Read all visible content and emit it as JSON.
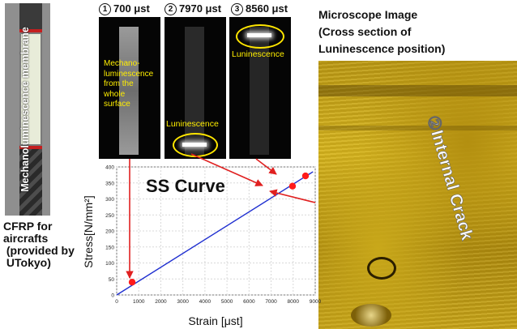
{
  "specimen": {
    "vertical_label": "Mechanoluminescence membrane",
    "caption_lines": [
      "CFRP for",
      "aircrafts",
      " (provided by",
      " UTokyo)"
    ]
  },
  "panels": [
    {
      "number": "1",
      "strain_label": "700 μst",
      "annotation_lines": [
        "Mechano-",
        "luminescence",
        "from the",
        "whole",
        "surface"
      ]
    },
    {
      "number": "2",
      "strain_label": "7970 μst",
      "annotation": "Luninescence"
    },
    {
      "number": "3",
      "strain_label": "8560 μst",
      "annotation": "Luninescence"
    }
  ],
  "microscope": {
    "title_lines": [
      "Microscope Image",
      "(Cross section of",
      "Luninescence position)"
    ],
    "crack_label": "②Internal Crack"
  },
  "chart_data": {
    "type": "line",
    "title": "SS Curve",
    "xlabel": "Strain [μst]",
    "ylabel": "Stress[N/mm²]",
    "xlim": [
      0,
      9000
    ],
    "ylim": [
      0,
      400
    ],
    "x_ticks": [
      0,
      1000,
      2000,
      3000,
      4000,
      5000,
      6000,
      7000,
      8000,
      9000
    ],
    "y_ticks": [
      0,
      50,
      100,
      150,
      200,
      250,
      300,
      350,
      400
    ],
    "grid": true,
    "series": [
      {
        "x": [
          0,
          8900
        ],
        "y": [
          0,
          385
        ],
        "color": "#1f2fd0"
      }
    ],
    "points": [
      {
        "x": 700,
        "y": 40
      },
      {
        "x": 7970,
        "y": 340
      },
      {
        "x": 8560,
        "y": 372
      }
    ],
    "point_color": "#ff1a1a"
  },
  "colors": {
    "arrow": "#e02020",
    "luminescence_label": "#ffee00",
    "ellipse": "#ffe600"
  }
}
